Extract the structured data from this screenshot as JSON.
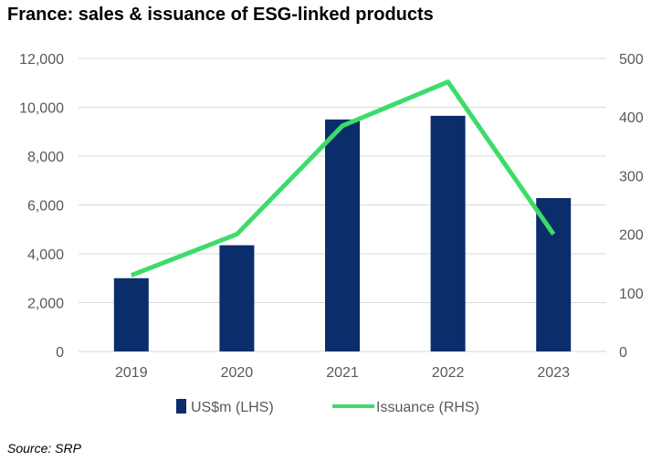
{
  "title": "France: sales & issuance of ESG-linked products",
  "source": "Source: SRP",
  "colors": {
    "bar": "#0b2d6b",
    "line": "#3ddc6a",
    "grid": "#d9d9d9",
    "axis_text": "#595959"
  },
  "chart_data": {
    "type": "bar",
    "categories": [
      "2019",
      "2020",
      "2021",
      "2022",
      "2023"
    ],
    "series": [
      {
        "name": "US$m (LHS)",
        "type": "bar",
        "axis": "left",
        "values": [
          3000,
          4350,
          9500,
          9650,
          6280
        ]
      },
      {
        "name": "Issuance (RHS)",
        "type": "line",
        "axis": "right",
        "values": [
          130,
          200,
          385,
          460,
          200
        ]
      }
    ],
    "y_left": {
      "min": 0,
      "max": 12000,
      "ticks": [
        "0",
        "2,000",
        "4,000",
        "6,000",
        "8,000",
        "10,000",
        "12,000"
      ]
    },
    "y_right": {
      "min": 0,
      "max": 500,
      "ticks": [
        "0",
        "100",
        "200",
        "300",
        "400",
        "500"
      ]
    },
    "grid": true,
    "legend_position": "bottom"
  }
}
